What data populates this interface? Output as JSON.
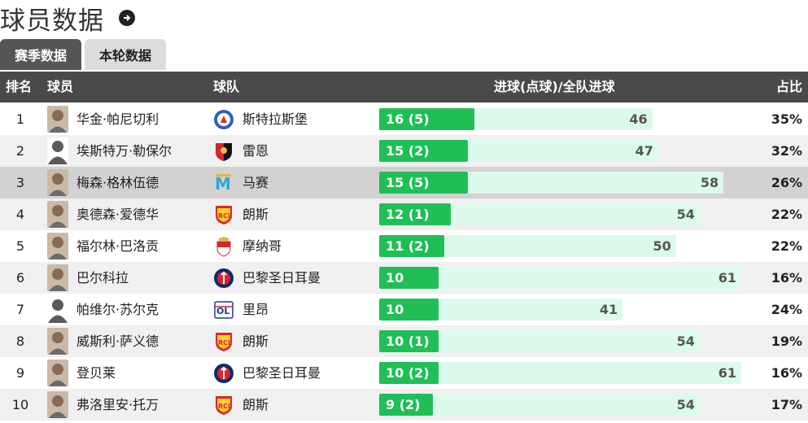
{
  "title": "球员数据",
  "tabs": [
    {
      "label": "赛季数据",
      "active": true
    },
    {
      "label": "本轮数据",
      "active": false
    }
  ],
  "columns": {
    "rank": "排名",
    "player": "球员",
    "team": "球队",
    "goals": "进球(点球)/全队进球",
    "share": "占比"
  },
  "colors": {
    "bar_fill": "#1fbf55",
    "bar_track": "#dbfaeb",
    "header": "#4a4a4a"
  },
  "max_team_goals": 61,
  "rows": [
    {
      "rank": "1",
      "player": "华金·帕尼切利",
      "team": "斯特拉斯堡",
      "goals_label": "16 (5)",
      "goals": 16,
      "team_goals": 46,
      "team_goals_label": "46",
      "share": "35%",
      "crest": "strasbourg-crest",
      "avatar": "photo",
      "highlight": false
    },
    {
      "rank": "2",
      "player": "埃斯特万·勒保尔",
      "team": "雷恩",
      "goals_label": "15 (2)",
      "goals": 15,
      "team_goals": 47,
      "team_goals_label": "47",
      "share": "32%",
      "crest": "rennes-crest",
      "avatar": "silhouette",
      "highlight": false
    },
    {
      "rank": "3",
      "player": "梅森·格林伍德",
      "team": "马赛",
      "goals_label": "15 (5)",
      "goals": 15,
      "team_goals": 58,
      "team_goals_label": "58",
      "share": "26%",
      "crest": "marseille-crest",
      "avatar": "photo",
      "highlight": true
    },
    {
      "rank": "4",
      "player": "奥德森·爱德华",
      "team": "朗斯",
      "goals_label": "12 (1)",
      "goals": 12,
      "team_goals": 54,
      "team_goals_label": "54",
      "share": "22%",
      "crest": "lens-crest",
      "avatar": "photo",
      "highlight": false
    },
    {
      "rank": "5",
      "player": "福尔林·巴洛贡",
      "team": "摩纳哥",
      "goals_label": "11 (2)",
      "goals": 11,
      "team_goals": 50,
      "team_goals_label": "50",
      "share": "22%",
      "crest": "monaco-crest",
      "avatar": "photo",
      "highlight": false
    },
    {
      "rank": "6",
      "player": "巴尔科拉",
      "team": "巴黎圣日耳曼",
      "goals_label": "10",
      "goals": 10,
      "team_goals": 61,
      "team_goals_label": "61",
      "share": "16%",
      "crest": "psg-crest",
      "avatar": "photo",
      "highlight": false
    },
    {
      "rank": "7",
      "player": "帕维尔·苏尔克",
      "team": "里昂",
      "goals_label": "10",
      "goals": 10,
      "team_goals": 41,
      "team_goals_label": "41",
      "share": "24%",
      "crest": "lyon-crest",
      "avatar": "silhouette",
      "highlight": false
    },
    {
      "rank": "8",
      "player": "威斯利·萨义德",
      "team": "朗斯",
      "goals_label": "10 (1)",
      "goals": 10,
      "team_goals": 54,
      "team_goals_label": "54",
      "share": "19%",
      "crest": "lens-crest",
      "avatar": "photo",
      "highlight": false
    },
    {
      "rank": "9",
      "player": "登贝莱",
      "team": "巴黎圣日耳曼",
      "goals_label": "10 (2)",
      "goals": 10,
      "team_goals": 61,
      "team_goals_label": "61",
      "share": "16%",
      "crest": "psg-crest",
      "avatar": "photo",
      "highlight": false
    },
    {
      "rank": "10",
      "player": "弗洛里安·托万",
      "team": "朗斯",
      "goals_label": "9 (2)",
      "goals": 9,
      "team_goals": 54,
      "team_goals_label": "54",
      "share": "17%",
      "crest": "lens-crest",
      "avatar": "photo",
      "highlight": false
    }
  ]
}
